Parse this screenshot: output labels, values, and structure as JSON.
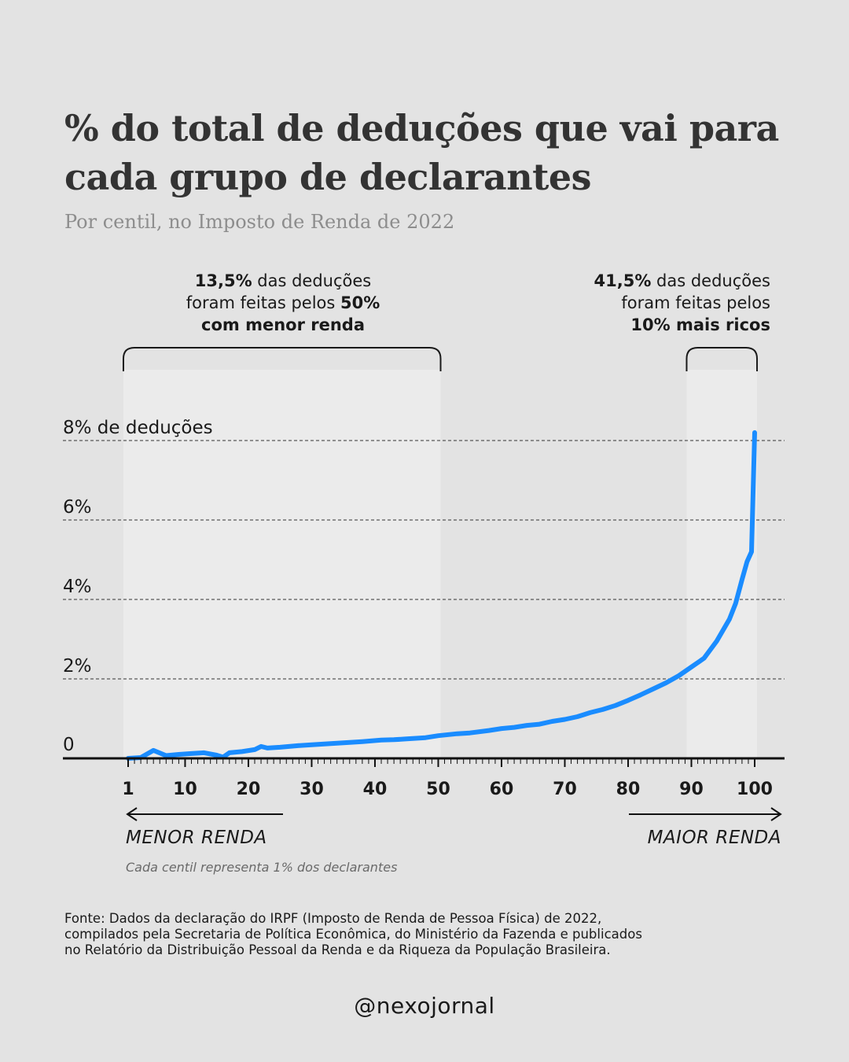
{
  "header": {
    "title": "% do total de deduções que vai para cada grupo de declarantes",
    "subtitle": "Por centil, no Imposto de Renda de 2022"
  },
  "annotations": {
    "left": {
      "bold1": "13,5%",
      "text1": " das deduções",
      "text2": "foram feitas pelos ",
      "bold2": "50%",
      "bold3": "com menor renda"
    },
    "right": {
      "bold1": "41,5%",
      "text1": " das deduções",
      "text2": "foram feitas pelos",
      "bold3": "10% mais ricos"
    }
  },
  "axis": {
    "left_arrow_label": "MENOR RENDA",
    "right_arrow_label": "MAIOR RENDA",
    "note": "Cada centil representa 1% dos declarantes"
  },
  "footer": {
    "source_lines": [
      "Fonte: Dados da declaração do IRPF (Imposto de Renda de Pessoa Física) de 2022,",
      "compilados pela Secretaria de Política Econômica, do Ministério da Fazenda e publicados",
      "no Relatório da Distribuição Pessoal da Renda e da Riqueza da População Brasileira."
    ],
    "brand": "@nexojornal"
  },
  "colors": {
    "line": "#1a8cff",
    "background": "#e3e3e3",
    "highlight": "#ebebeb"
  },
  "chart_data": {
    "type": "line",
    "xlabel": "",
    "ylabel": "",
    "xlim": [
      1,
      100
    ],
    "ylim": [
      0,
      8
    ],
    "x_ticks": [
      1,
      10,
      20,
      30,
      40,
      50,
      60,
      70,
      80,
      90,
      100
    ],
    "x_tick_labels": [
      "1",
      "10",
      "20",
      "30",
      "40",
      "50",
      "60",
      "70",
      "80",
      "90",
      "100"
    ],
    "y_ticks": [
      0,
      2,
      4,
      6,
      8
    ],
    "y_tick_labels": [
      "0",
      "2%",
      "4%",
      "6%",
      "8% de deduções"
    ],
    "grid": "horizontal dashed",
    "highlight_ranges": [
      [
        1,
        50
      ],
      [
        90,
        100
      ]
    ],
    "series": [
      {
        "points": [
          [
            1,
            0.0
          ],
          [
            2,
            0.01
          ],
          [
            3,
            0.02
          ],
          [
            5,
            0.2
          ],
          [
            7,
            0.07
          ],
          [
            9,
            0.1
          ],
          [
            11,
            0.12
          ],
          [
            13,
            0.14
          ],
          [
            15,
            0.08
          ],
          [
            16,
            0.03
          ],
          [
            17,
            0.14
          ],
          [
            19,
            0.17
          ],
          [
            21,
            0.22
          ],
          [
            22,
            0.3
          ],
          [
            23,
            0.26
          ],
          [
            25,
            0.28
          ],
          [
            28,
            0.32
          ],
          [
            30,
            0.34
          ],
          [
            33,
            0.37
          ],
          [
            36,
            0.4
          ],
          [
            38,
            0.42
          ],
          [
            41,
            0.46
          ],
          [
            43,
            0.47
          ],
          [
            45,
            0.49
          ],
          [
            48,
            0.52
          ],
          [
            50,
            0.57
          ],
          [
            53,
            0.62
          ],
          [
            55,
            0.64
          ],
          [
            58,
            0.7
          ],
          [
            60,
            0.75
          ],
          [
            62,
            0.78
          ],
          [
            64,
            0.83
          ],
          [
            66,
            0.86
          ],
          [
            68,
            0.93
          ],
          [
            70,
            0.98
          ],
          [
            72,
            1.05
          ],
          [
            73,
            1.1
          ],
          [
            74,
            1.15
          ],
          [
            76,
            1.23
          ],
          [
            78,
            1.33
          ],
          [
            80,
            1.46
          ],
          [
            82,
            1.6
          ],
          [
            84,
            1.75
          ],
          [
            86,
            1.9
          ],
          [
            88,
            2.08
          ],
          [
            90,
            2.3
          ],
          [
            92,
            2.52
          ],
          [
            94,
            2.95
          ],
          [
            96,
            3.5
          ],
          [
            97,
            3.9
          ],
          [
            98,
            4.5
          ],
          [
            98.8,
            4.95
          ],
          [
            99.5,
            5.2
          ],
          [
            100,
            8.2
          ]
        ]
      }
    ]
  }
}
